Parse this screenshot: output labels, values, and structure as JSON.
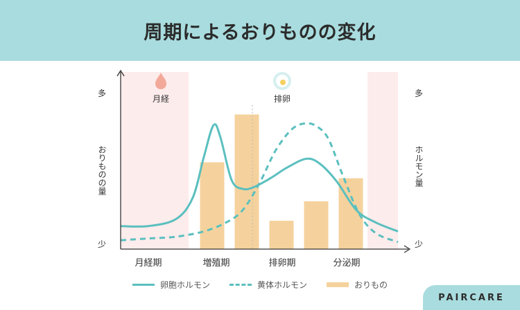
{
  "header": {
    "title": "周期によるおりものの変化"
  },
  "brand": {
    "name": "PAIRCARE"
  },
  "colors": {
    "background": "#a9dcde",
    "card": "#ffffff",
    "menstrual_band": "#fdecec",
    "bar": "#f5d29d",
    "line": "#5bbfbf",
    "drop": "#f3a99a",
    "egg_outer": "#d6efef",
    "egg_inner": "#f5d060"
  },
  "chart_data": {
    "type": "bar",
    "title": "周期によるおりものの変化",
    "phases": [
      "月経期",
      "増殖期",
      "排卵期",
      "分泌期"
    ],
    "markers": {
      "menstruation": "月経",
      "ovulation": "排卵"
    },
    "left_axis": {
      "label": "おりものの量",
      "top": "多",
      "bottom": "少"
    },
    "right_axis": {
      "label": "ホルモン量",
      "top": "多",
      "bottom": "少"
    },
    "xlim": [
      0,
      100
    ],
    "ylim": [
      0,
      100
    ],
    "ovulation_x": 47.5,
    "menstrual_bands": [
      [
        0,
        24.5
      ],
      [
        89,
        100
      ]
    ],
    "bars": {
      "name": "おりもの",
      "x": [
        33,
        45.5,
        58,
        70.5,
        83
      ],
      "values": [
        49,
        76,
        16,
        27,
        40
      ]
    },
    "series": [
      {
        "name": "卵胞ホルモン",
        "style": "solid",
        "x": [
          0,
          10,
          20,
          26,
          30,
          33.5,
          36,
          40,
          44,
          48,
          54,
          60,
          67,
          72,
          78,
          85,
          92,
          100
        ],
        "values": [
          13,
          13,
          17,
          29,
          52,
          70,
          63,
          39,
          34,
          35,
          40,
          46,
          51,
          48,
          38,
          22,
          15,
          10
        ]
      },
      {
        "name": "黄体ホルモン",
        "style": "dashed",
        "x": [
          0,
          10,
          20,
          30,
          38,
          44,
          50,
          56,
          62,
          67,
          71,
          75,
          80,
          86,
          92,
          100
        ],
        "values": [
          5,
          6,
          7,
          10,
          15,
          22,
          37,
          56,
          68,
          71,
          69,
          62,
          42,
          20,
          9,
          4
        ]
      }
    ]
  }
}
